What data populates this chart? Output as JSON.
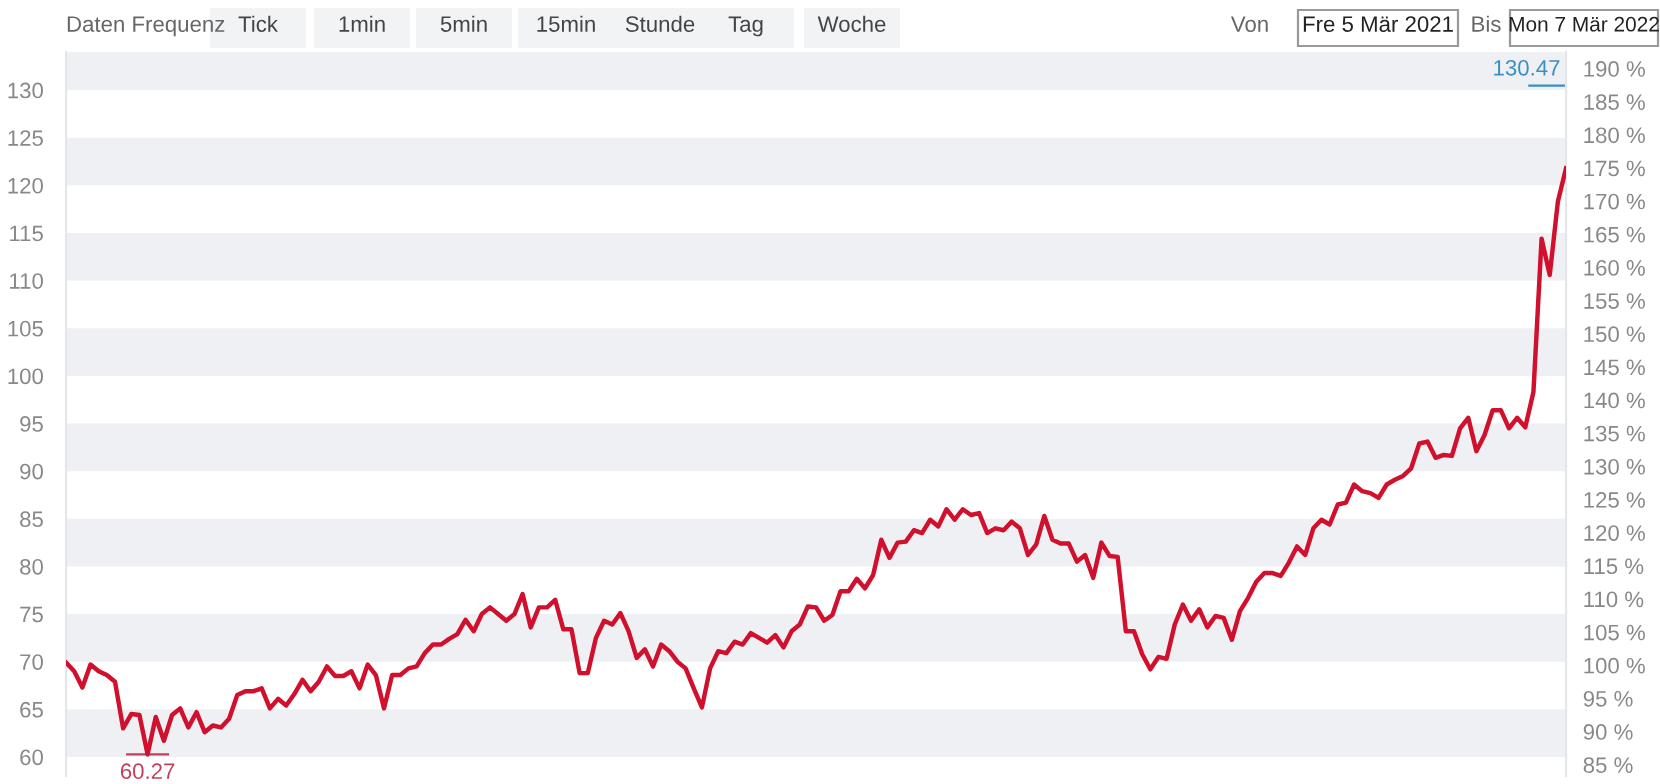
{
  "chart_data": {
    "type": "line",
    "annotations": [
      "Daten Frequenz",
      "Tick",
      "1min",
      "5min",
      "15min",
      "Stunde",
      "Tag",
      "Woche",
      "Von",
      "Fre 5 Mär 2021",
      "Bis",
      "Mon 7 Mär 2022",
      {
        "text": "60.27",
        "y": 60.27
      },
      {
        "text": "130.47",
        "y": 130.47
      }
    ],
    "categories": [
      null,
      null,
      null,
      null,
      null,
      null,
      null,
      null,
      null,
      null,
      null,
      null,
      null,
      null,
      null,
      null,
      null,
      null,
      null,
      null,
      null,
      null,
      null,
      null,
      null,
      null,
      null,
      null,
      null,
      null,
      null,
      null,
      null,
      null,
      null,
      null,
      null,
      null,
      null,
      null,
      null,
      null,
      null,
      null,
      null,
      null,
      null,
      null,
      null,
      null,
      null,
      null,
      null,
      null,
      null,
      null,
      null,
      null,
      null,
      null,
      null,
      null,
      null,
      null,
      null,
      null,
      null,
      null,
      null,
      null,
      null,
      null,
      null,
      null,
      null,
      null,
      null,
      null,
      null,
      null,
      null,
      null,
      null,
      null,
      null,
      null,
      null,
      null,
      null,
      null,
      null,
      null,
      null,
      null,
      null,
      null,
      null,
      null,
      null,
      null,
      null,
      null,
      null,
      null,
      null,
      null,
      null,
      null,
      null,
      null,
      null,
      null,
      null,
      null,
      null,
      null,
      null,
      null,
      null,
      null,
      null,
      null,
      null,
      null,
      null,
      null,
      null,
      null,
      null,
      null,
      null,
      null,
      null,
      null,
      null,
      null,
      null,
      null,
      null,
      null,
      null,
      null,
      null,
      null,
      null,
      null,
      null,
      null,
      null,
      null,
      null,
      null,
      null,
      null,
      null,
      null,
      null,
      null,
      null,
      null,
      null,
      null,
      null,
      null,
      null,
      null,
      null,
      null,
      null,
      null,
      null,
      null,
      null,
      null,
      null,
      null,
      null,
      null,
      null,
      null,
      null,
      null,
      null,
      null,
      null
    ],
    "series": [
      {
        "color": "#d0102c",
        "values": [
          69.9,
          69.0,
          67.3,
          69.7,
          69.0,
          68.6,
          67.9,
          63.0,
          64.5,
          64.4,
          60.27,
          64.2,
          61.7,
          64.4,
          65.1,
          63.1,
          64.7,
          62.6,
          63.3,
          63.1,
          64.0,
          66.5,
          66.9,
          66.9,
          67.2,
          65.1,
          66.1,
          65.4,
          66.6,
          68.1,
          66.9,
          67.9,
          69.5,
          68.5,
          68.5,
          69.0,
          67.2,
          69.7,
          68.6,
          65.1,
          68.6,
          68.6,
          69.3,
          69.5,
          70.9,
          71.8,
          71.8,
          72.4,
          72.9,
          74.4,
          73.2,
          75.0,
          75.7,
          75.0,
          74.3,
          75.0,
          77.1,
          73.6,
          75.7,
          75.7,
          76.5,
          73.4,
          73.4,
          68.8,
          68.8,
          72.5,
          74.3,
          73.9,
          75.1,
          73.2,
          70.4,
          71.3,
          69.5,
          71.8,
          71.1,
          70.0,
          69.3,
          67.2,
          65.2,
          69.3,
          71.1,
          70.9,
          72.1,
          71.8,
          73.0,
          72.5,
          72.0,
          72.8,
          71.5,
          73.2,
          73.9,
          75.8,
          75.7,
          74.3,
          74.9,
          77.4,
          77.4,
          78.7,
          77.7,
          79.1,
          82.8,
          80.9,
          82.5,
          82.6,
          83.8,
          83.5,
          84.9,
          84.2,
          86.0,
          84.9,
          86.0,
          85.4,
          85.6,
          83.5,
          84.0,
          83.8,
          84.7,
          84.0,
          81.2,
          82.3,
          85.3,
          82.8,
          82.4,
          82.4,
          80.5,
          81.2,
          78.8,
          82.5,
          81.1,
          81.0,
          73.2,
          73.2,
          70.8,
          69.2,
          70.5,
          70.3,
          73.9,
          76.0,
          74.3,
          75.5,
          73.6,
          74.8,
          74.6,
          72.3,
          75.3,
          76.7,
          78.4,
          79.3,
          79.3,
          79.0,
          80.4,
          82.1,
          81.2,
          84.0,
          84.9,
          84.4,
          86.5,
          86.7,
          88.6,
          87.9,
          87.7,
          87.2,
          88.6,
          89.1,
          89.5,
          90.3,
          92.9,
          93.1,
          91.4,
          91.7,
          91.6,
          94.5,
          95.6,
          92.1,
          93.8,
          96.4,
          96.4,
          94.5,
          95.6,
          94.6,
          98.3,
          114.4,
          110.6,
          118.3,
          121.8
        ]
      }
    ],
    "ylim": [
      58,
      134
    ],
    "yticks": [
      60,
      65,
      70,
      75,
      80,
      85,
      90,
      95,
      100,
      105,
      110,
      115,
      120,
      125,
      130
    ],
    "y2lim": [
      83.3,
      192.5
    ],
    "y2ticks": [
      {
        "value": 85,
        "label": "85 %"
      },
      {
        "value": 90,
        "label": "90 %"
      },
      {
        "value": 95,
        "label": "95 %"
      },
      {
        "value": 100,
        "label": "100 %"
      },
      {
        "value": 105,
        "label": "105 %"
      },
      {
        "value": 110,
        "label": "110 %"
      },
      {
        "value": 115,
        "label": "115 %"
      },
      {
        "value": 120,
        "label": "120 %"
      },
      {
        "value": 125,
        "label": "125 %"
      },
      {
        "value": 130,
        "label": "130 %"
      },
      {
        "value": 135,
        "label": "135 %"
      },
      {
        "value": 140,
        "label": "140 %"
      },
      {
        "value": 145,
        "label": "145 %"
      },
      {
        "value": 150,
        "label": "150 %"
      },
      {
        "value": 155,
        "label": "155 %"
      },
      {
        "value": 160,
        "label": "160 %"
      },
      {
        "value": 165,
        "label": "165 %"
      },
      {
        "value": 170,
        "label": "170 %"
      },
      {
        "value": 175,
        "label": "175 %"
      },
      {
        "value": 180,
        "label": "180 %"
      },
      {
        "value": 185,
        "label": "185 %"
      },
      {
        "value": 190,
        "label": "190 %"
      }
    ],
    "bands": [
      {
        "axis": "y",
        "from": 60,
        "to": 65,
        "color": "#eef0f3"
      },
      {
        "axis": "y",
        "from": 70,
        "to": 75,
        "color": "#eef0f3"
      },
      {
        "axis": "y",
        "from": 80,
        "to": 85,
        "color": "#eef0f3"
      },
      {
        "axis": "y",
        "from": 90,
        "to": 95,
        "color": "#eef0f3"
      },
      {
        "axis": "y",
        "from": 100,
        "to": 105,
        "color": "#eef0f3"
      },
      {
        "axis": "y",
        "from": 110,
        "to": 115,
        "color": "#eef0f3"
      },
      {
        "axis": "y",
        "from": 120,
        "to": 125,
        "color": "#eef0f3"
      },
      {
        "axis": "y",
        "from": 130,
        "to": 134,
        "color": "#eef0f3"
      }
    ],
    "tick_labels": "y",
    "grid": false,
    "marker": "none",
    "line_style": "solid"
  }
}
